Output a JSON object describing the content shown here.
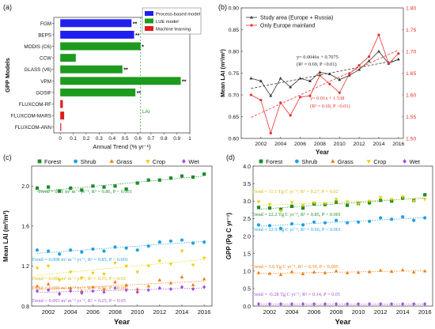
{
  "chart_data": [
    {
      "panel": "(a)",
      "type": "bar",
      "orientation": "horizontal",
      "ylabel": "GPP Models",
      "xlabel": "Annual Trend (% yr⁻¹)",
      "xlim": [
        -0.05,
        1.0
      ],
      "xticks": [
        "0",
        "0.1",
        "0.2",
        "0.3",
        "0.4",
        "0.5",
        "0.6",
        "0.7",
        "0.8",
        "0.9",
        "1"
      ],
      "xtick_values": [
        0,
        0.1,
        0.2,
        0.3,
        0.4,
        0.5,
        0.6,
        0.7,
        0.8,
        0.9,
        1.0
      ],
      "categories": [
        "FGM",
        "BEPS",
        "MODIS (C6)",
        "CCW",
        "GLASS (V6)",
        "VPM",
        "GOSIF",
        "FLUXCOM-RF",
        "FLUXCOM-MARS",
        "FLUXCOM-ANN"
      ],
      "values": [
        0.55,
        0.57,
        0.62,
        0.12,
        0.48,
        0.93,
        0.58,
        0.02,
        0.03,
        0.0
      ],
      "groups": [
        "process",
        "process",
        "lue",
        "lue",
        "lue",
        "lue",
        "lue",
        "ml",
        "ml",
        "ml"
      ],
      "significance": [
        "**",
        "**",
        "*",
        "",
        "**",
        "**",
        "**",
        "",
        "",
        ""
      ],
      "legend": [
        {
          "key": "process",
          "label": "Process-based model",
          "color": "#1f1ff0"
        },
        {
          "key": "lue",
          "label": "LUE model",
          "color": "#1e9a1e"
        },
        {
          "key": "ml",
          "label": "Machine learning",
          "color": "#e01b1b"
        }
      ],
      "refline": {
        "value": 0.62,
        "label": "LAI"
      },
      "legend_position": "top-right"
    },
    {
      "panel": "(b)",
      "type": "line",
      "xlabel": "Year",
      "ylabel": "Mean LAI (m²/m²)",
      "xlim": [
        2000,
        2016.5
      ],
      "ylim": [
        0.6,
        0.9
      ],
      "ylim_right": [
        1.5,
        1.8
      ],
      "xticks": [
        2002,
        2004,
        2006,
        2008,
        2010,
        2012,
        2014,
        2016
      ],
      "yticks": [
        "0.60",
        "0.65",
        "0.70",
        "0.75",
        "0.80",
        "0.85",
        "0.90"
      ],
      "yticks_right": [
        "1.50",
        "1.55",
        "1.60",
        "1.65",
        "1.70",
        "1.75",
        "1.80"
      ],
      "x": [
        2001,
        2002,
        2003,
        2004,
        2005,
        2006,
        2007,
        2008,
        2009,
        2010,
        2011,
        2012,
        2013,
        2014,
        2015,
        2016
      ],
      "series": [
        {
          "name": "Study area (Europe + Russia)",
          "axis": "left",
          "color": "#333333",
          "marker": "triangle",
          "values": [
            0.738,
            0.732,
            0.698,
            0.738,
            0.718,
            0.738,
            0.732,
            0.752,
            0.748,
            0.735,
            0.745,
            0.758,
            0.778,
            0.8,
            0.772,
            0.782
          ]
        },
        {
          "name": "Only Europe mainland",
          "axis": "right",
          "color": "#e83030",
          "marker": "circle",
          "values": [
            1.6,
            1.588,
            1.512,
            1.582,
            1.553,
            1.595,
            1.598,
            1.645,
            1.625,
            1.605,
            1.648,
            1.668,
            1.688,
            1.738,
            1.672,
            1.695
          ]
        }
      ],
      "annotations": [
        {
          "text": "y= 0.0046x + 0.7075",
          "color": "#222222"
        },
        {
          "text": "(R² = 0.69, P <0.01)",
          "color": "#222222"
        },
        {
          "text": "y= 0.01x + 1.538",
          "color": "#e83030"
        },
        {
          "text": "(R² = 0.69, P <0.01)",
          "color": "#e83030"
        }
      ],
      "legend_position": "top-left"
    },
    {
      "panel": "(c)",
      "type": "scatter",
      "xlabel": "Year",
      "ylabel": "Mean LAI (m²/m²)",
      "xlim": [
        2000.5,
        2016.7
      ],
      "ylim": [
        0.8,
        2.2
      ],
      "xticks": [
        2002,
        2004,
        2006,
        2008,
        2010,
        2012,
        2014,
        2016
      ],
      "yticks": [
        "0.8",
        "1.2",
        "1.6",
        "2.0"
      ],
      "x": [
        2001,
        2002,
        2003,
        2004,
        2005,
        2006,
        2007,
        2008,
        2009,
        2010,
        2011,
        2012,
        2013,
        2014,
        2015,
        2016
      ],
      "series": [
        {
          "name": "Forest",
          "color": "#1e8c28",
          "marker": "square",
          "values": [
            1.98,
            1.99,
            1.95,
            1.98,
            1.96,
            2.0,
            1.99,
            2.0,
            1.97,
            2.03,
            2.06,
            2.06,
            2.08,
            2.1,
            2.09,
            2.12
          ]
        },
        {
          "name": "Shrub",
          "color": "#1ea0e0",
          "marker": "circle",
          "values": [
            1.36,
            1.35,
            1.32,
            1.36,
            1.34,
            1.37,
            1.35,
            1.39,
            1.38,
            1.36,
            1.4,
            1.44,
            1.45,
            1.46,
            1.43,
            1.44
          ]
        },
        {
          "name": "Grass",
          "color": "#f07d10",
          "marker": "triangle-up",
          "values": [
            1.0,
            1.02,
            0.93,
            0.98,
            0.95,
            0.99,
            0.97,
            1.04,
            1.01,
            0.97,
            1.0,
            1.06,
            1.03,
            1.09,
            1.01,
            1.07
          ]
        },
        {
          "name": "Crop",
          "color": "#e8d000",
          "marker": "triangle-down",
          "values": [
            1.18,
            1.2,
            1.06,
            1.14,
            1.08,
            1.13,
            1.12,
            1.23,
            1.2,
            1.14,
            1.2,
            1.25,
            1.22,
            1.35,
            1.21,
            1.28
          ]
        },
        {
          "name": "Wet",
          "color": "#a050e0",
          "marker": "diamond",
          "values": [
            0.95,
            0.96,
            0.92,
            0.95,
            0.93,
            0.95,
            0.94,
            0.98,
            0.96,
            0.94,
            0.96,
            0.98,
            0.97,
            0.99,
            0.97,
            0.99
          ]
        }
      ],
      "annotations": [
        {
          "text": "Trend = 0.01 m² m⁻² yr⁻¹, R² = 0.86, P < 0.001",
          "color": "#1e8c28"
        },
        {
          "text": "Trend = 0.008 m² m⁻² yr⁻¹, R² = 0.85, P < 0.001",
          "color": "#1ea0e0"
        },
        {
          "text": "Trend = 0.006 m² m⁻² yr⁻¹, R² = 0.35, P = 0.02",
          "color": "#d8b800"
        },
        {
          "text": "Trend = 0.006 m² m⁻² yr⁻¹, R² = 0.52, P < 0.005",
          "color": "#f07d10"
        },
        {
          "text": "Trend = 0.003 m² m⁻² yr⁻¹, R² = 0.25, P = 0.05",
          "color": "#a050e0"
        }
      ],
      "legend_position": "top"
    },
    {
      "panel": "(d)",
      "type": "scatter",
      "xlabel": "Year",
      "ylabel": "GPP (Pg C yr⁻¹)",
      "xlim": [
        2000.5,
        2016.7
      ],
      "ylim": [
        0.0,
        4.0
      ],
      "xticks": [
        2002,
        2004,
        2006,
        2008,
        2010,
        2012,
        2014,
        2016
      ],
      "yticks": [
        "0.0",
        "0.5",
        "1.0",
        "1.5",
        "2.0",
        "2.5",
        "3.0",
        "3.5",
        "4.0"
      ],
      "x": [
        2001,
        2002,
        2003,
        2004,
        2005,
        2006,
        2007,
        2008,
        2009,
        2010,
        2011,
        2012,
        2013,
        2014,
        2015,
        2016
      ],
      "series": [
        {
          "name": "Forest",
          "color": "#1e8c28",
          "marker": "square",
          "values": [
            2.82,
            2.8,
            2.76,
            2.85,
            2.8,
            2.92,
            2.9,
            2.97,
            2.88,
            2.93,
            2.95,
            3.02,
            3.0,
            3.08,
            3.02,
            3.18
          ]
        },
        {
          "name": "Shrub",
          "color": "#1ea0e0",
          "marker": "circle",
          "values": [
            2.32,
            2.3,
            2.22,
            2.35,
            2.32,
            2.4,
            2.38,
            2.45,
            2.38,
            2.4,
            2.42,
            2.52,
            2.48,
            2.55,
            2.45,
            2.52
          ]
        },
        {
          "name": "Grass",
          "color": "#f07d10",
          "marker": "triangle-up",
          "values": [
            0.95,
            0.93,
            0.9,
            0.98,
            0.92,
            0.97,
            0.95,
            1.0,
            0.95,
            0.96,
            0.98,
            1.02,
            0.99,
            1.03,
            0.97,
            1.0
          ]
        },
        {
          "name": "Crop",
          "color": "#e8d000",
          "marker": "triangle-down",
          "values": [
            2.98,
            2.9,
            2.72,
            2.96,
            2.88,
            2.95,
            2.93,
            3.05,
            2.98,
            2.92,
            3.0,
            3.1,
            3.05,
            3.12,
            3.0,
            3.05
          ]
        },
        {
          "name": "Wet",
          "color": "#a050e0",
          "marker": "diamond",
          "values": [
            0.06,
            0.06,
            0.06,
            0.06,
            0.06,
            0.06,
            0.06,
            0.06,
            0.06,
            0.06,
            0.06,
            0.06,
            0.06,
            0.06,
            0.06,
            0.06
          ]
        }
      ],
      "annotations": [
        {
          "text": "Trend = 11.1 Tg C yr⁻¹, R² = 0.27, P = 0.02",
          "color": "#d8b800"
        },
        {
          "text": "Trend = 22.2 Tg C yr⁻¹, R² = 0.85, P < 0.001",
          "color": "#1e8c28"
        },
        {
          "text": "Trend = 12.9 Tg C yr⁻¹, R² = 0.66, P < 0.001",
          "color": "#1ea0e0"
        },
        {
          "text": "Trend = 5.6 Tg C yr⁻¹, R² = 0.39, P < 0.005",
          "color": "#f07d10"
        },
        {
          "text": "Trend = -0.28 Tg C yr⁻¹, R² = 0.14, P = 0.05",
          "color": "#a050e0"
        }
      ],
      "legend_position": "top"
    }
  ]
}
